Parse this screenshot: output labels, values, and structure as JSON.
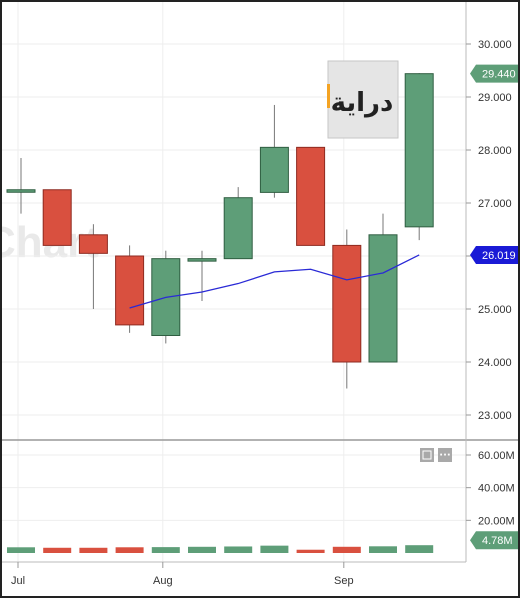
{
  "watermark": "Chart",
  "logo_text": "دراية",
  "colors": {
    "up": "#5e9e78",
    "down": "#d9503f",
    "ma": "#2a2ad6",
    "last_price_bg": "#5e9e78",
    "ma_badge_bg": "#1a1ad6",
    "volume_badge_bg": "#5e9e78"
  },
  "chart_data": {
    "type": "candlestick",
    "price_axis": {
      "ylim": [
        22.5,
        30.6
      ],
      "ticks": [
        "30.000",
        "29.000",
        "28.000",
        "27.000",
        "26.000",
        "25.000",
        "24.000",
        "23.000"
      ]
    },
    "volume_axis": {
      "ylim": [
        0,
        72
      ],
      "unit": "M",
      "ticks": [
        "60.00M",
        "40.00M",
        "20.00M"
      ]
    },
    "x_axis": {
      "labels": [
        {
          "label": "Jul",
          "at": 0.2
        },
        {
          "label": "Aug",
          "at": 4.2
        },
        {
          "label": "Sep",
          "at": 9.2
        }
      ]
    },
    "candles": [
      {
        "open": 27.25,
        "high": 27.85,
        "low": 26.8,
        "close": 27.25,
        "volume": 3.5
      },
      {
        "open": 27.25,
        "high": 27.25,
        "low": 26.2,
        "close": 26.2,
        "volume": 3.2
      },
      {
        "open": 26.4,
        "high": 26.6,
        "low": 25.0,
        "close": 26.05,
        "volume": 3.2
      },
      {
        "open": 26.0,
        "high": 26.2,
        "low": 24.55,
        "close": 24.7,
        "volume": 3.5
      },
      {
        "open": 24.5,
        "high": 26.1,
        "low": 24.35,
        "close": 25.95,
        "volume": 3.6
      },
      {
        "open": 25.95,
        "high": 26.1,
        "low": 25.15,
        "close": 25.95,
        "volume": 3.8
      },
      {
        "open": 25.95,
        "high": 27.3,
        "low": 25.95,
        "close": 27.1,
        "volume": 4.0
      },
      {
        "open": 27.2,
        "high": 28.85,
        "low": 27.1,
        "close": 28.05,
        "volume": 4.5
      },
      {
        "open": 28.05,
        "high": 28.05,
        "low": 26.2,
        "close": 26.2,
        "volume": 2.0
      },
      {
        "open": 26.2,
        "high": 26.5,
        "low": 23.5,
        "close": 24.0,
        "volume": 3.8
      },
      {
        "open": 24.0,
        "high": 26.8,
        "low": 24.0,
        "close": 26.4,
        "volume": 4.1
      },
      {
        "open": 26.55,
        "high": 29.45,
        "low": 26.3,
        "close": 29.44,
        "volume": 4.78
      }
    ],
    "moving_average": {
      "start_index": 3,
      "values": [
        25.02,
        25.22,
        25.32,
        25.48,
        25.7,
        25.75,
        25.55,
        25.68,
        26.02
      ]
    },
    "labels": {
      "last_price": "29.440",
      "ma_value": "26.019",
      "last_volume": "4.78M"
    }
  }
}
